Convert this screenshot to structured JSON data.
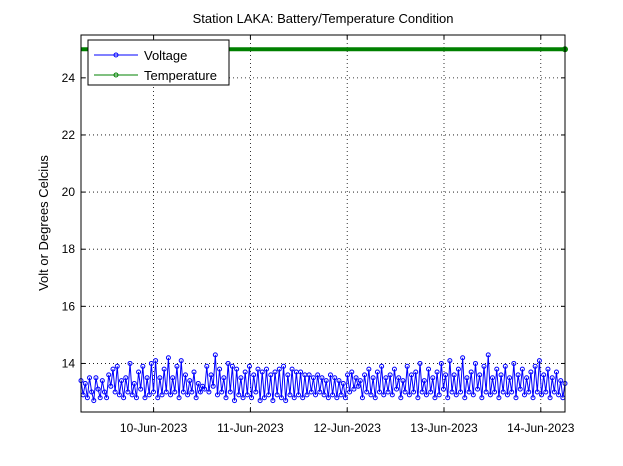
{
  "chart_data": {
    "type": "line",
    "title": "Station LAKA: Battery/Temperature Condition",
    "xlabel": "",
    "ylabel": "Volt or Degrees Celcius",
    "xlim": [
      "2023-06-09 06:00",
      "2023-06-14 06:00"
    ],
    "ylim": [
      12.3,
      25.5
    ],
    "yticks": [
      14,
      16,
      18,
      20,
      22,
      24
    ],
    "xticks": [
      {
        "label": "10-Jun-2023",
        "date": "2023-06-10"
      },
      {
        "label": "11-Jun-2023",
        "date": "2023-06-11"
      },
      {
        "label": "12-Jun-2023",
        "date": "2023-06-12"
      },
      {
        "label": "13-Jun-2023",
        "date": "2023-06-13"
      },
      {
        "label": "14-Jun-2023",
        "date": "2023-06-14"
      }
    ],
    "grid": true,
    "legend_position": "top-left",
    "series": [
      {
        "name": "Voltage",
        "color": "#0000ff",
        "marker": "circle",
        "x_start": "2023-06-09 06:00",
        "x_end": "2023-06-14 06:00",
        "values": [
          13.4,
          12.9,
          13.3,
          12.8,
          13.5,
          13.0,
          12.7,
          13.5,
          13.1,
          12.8,
          13.4,
          13.0,
          12.8,
          13.6,
          13.2,
          13.8,
          13.0,
          13.9,
          12.9,
          13.4,
          12.8,
          13.5,
          13.0,
          14.0,
          12.9,
          13.3,
          12.8,
          13.7,
          13.1,
          13.9,
          12.8,
          13.5,
          12.9,
          14.0,
          13.0,
          14.1,
          12.8,
          13.5,
          12.9,
          13.8,
          13.0,
          14.2,
          12.9,
          13.5,
          13.0,
          13.9,
          12.8,
          14.1,
          13.0,
          13.6,
          12.9,
          13.4,
          13.0,
          13.7,
          12.8,
          13.3,
          13.0,
          13.2,
          13.1,
          13.9,
          13.0,
          13.6,
          13.2,
          14.3,
          12.9,
          13.8,
          13.0,
          13.5,
          12.8,
          14.0,
          13.0,
          13.9,
          12.7,
          13.8,
          12.9,
          13.5,
          12.8,
          13.7,
          12.9,
          13.9,
          12.8,
          13.6,
          13.0,
          13.8,
          12.7,
          13.7,
          12.8,
          13.8,
          12.9,
          13.6,
          12.7,
          13.7,
          12.9,
          13.8,
          12.8,
          13.9,
          12.7,
          13.6,
          12.9,
          13.8,
          12.8,
          13.7,
          12.9,
          13.7,
          12.8,
          13.6,
          12.9,
          13.6,
          13.0,
          13.5,
          12.9,
          13.6,
          13.0,
          13.5,
          12.9,
          13.4,
          12.8,
          13.6,
          12.9,
          13.5,
          12.8,
          13.4,
          12.9,
          13.3,
          12.8,
          13.6,
          13.0,
          13.7,
          13.1,
          13.5,
          13.2,
          13.4,
          12.8,
          13.6,
          13.0,
          13.8,
          12.9,
          13.5,
          12.8,
          13.7,
          13.0,
          13.9,
          12.9,
          13.5,
          13.0,
          13.6,
          12.9,
          13.8,
          13.1,
          13.5,
          12.8,
          13.4,
          13.0,
          13.9,
          12.9,
          13.6,
          13.0,
          13.7,
          12.8,
          14.0,
          13.0,
          13.4,
          12.9,
          13.8,
          13.0,
          13.5,
          12.8,
          13.7,
          12.9,
          14.0,
          13.1,
          13.6,
          12.8,
          14.1,
          13.0,
          13.6,
          12.9,
          13.8,
          13.0,
          14.2,
          12.8,
          13.5,
          13.0,
          13.7,
          12.9,
          14.0,
          13.1,
          13.6,
          12.8,
          13.9,
          13.0,
          14.3,
          12.9,
          13.5,
          13.0,
          13.8,
          12.8,
          13.6,
          13.0,
          13.9,
          12.9,
          13.5,
          13.0,
          14.0,
          12.8,
          13.6,
          13.1,
          13.8,
          12.9,
          13.5,
          13.0,
          13.7,
          12.8,
          13.9,
          13.0,
          14.1,
          12.9,
          13.6,
          13.0,
          13.8,
          12.8,
          13.5,
          13.0,
          13.7,
          12.9,
          13.4,
          12.8,
          13.3
        ]
      },
      {
        "name": "Temperature",
        "color": "#008000",
        "marker": "circle",
        "x_start": "2023-06-09 06:00",
        "x_end": "2023-06-14 06:00",
        "values": [
          25.0,
          25.0
        ]
      }
    ]
  }
}
